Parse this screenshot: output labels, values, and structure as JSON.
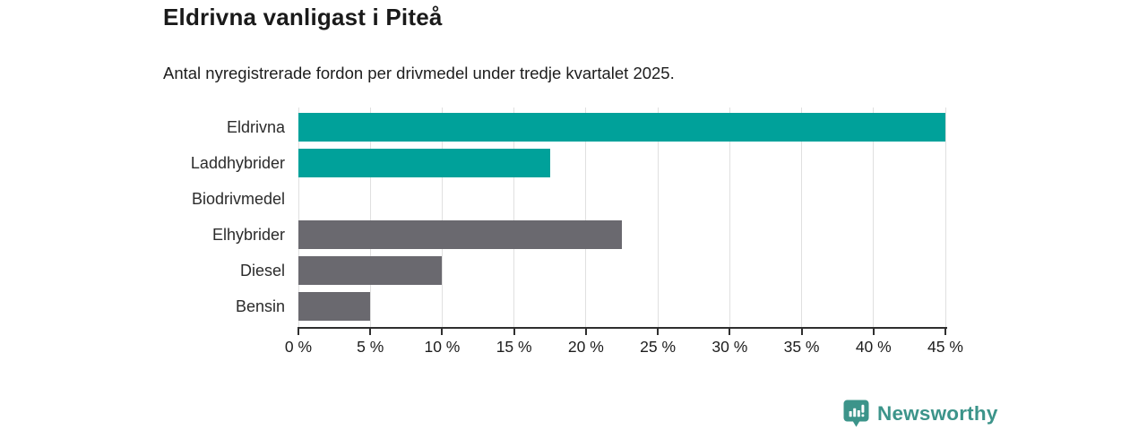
{
  "header": {
    "title": "Eldrivna vanligast i Piteå",
    "subtitle": "Antal nyregistrerade fordon per drivmedel under tredje kvartalet 2025."
  },
  "chart_data": {
    "type": "bar",
    "orientation": "horizontal",
    "title": "Eldrivna vanligast i Piteå",
    "categories": [
      "Eldrivna",
      "Laddhybrider",
      "Biodrivmedel",
      "Elhybrider",
      "Diesel",
      "Bensin"
    ],
    "values": [
      45,
      17.5,
      0,
      22.5,
      10,
      5
    ],
    "value_unit": "%",
    "series_colors": [
      "#00a19a",
      "#00a19a",
      "#00a19a",
      "#6a696f",
      "#6a696f",
      "#6a696f"
    ],
    "xlim": [
      0,
      45
    ],
    "xticks": [
      0,
      5,
      10,
      15,
      20,
      25,
      30,
      35,
      40,
      45
    ],
    "xtick_labels": [
      "0 %",
      "5 %",
      "10 %",
      "15 %",
      "20 %",
      "25 %",
      "30 %",
      "35 %",
      "40 %",
      "45 %"
    ],
    "grid": true,
    "legend": false,
    "xlabel": "",
    "ylabel": ""
  },
  "footer": {
    "brand": "Newsworthy",
    "brand_color": "#3c948a",
    "logo_icon": "bar-chart-speech-bubble-icon"
  },
  "colors": {
    "bar_teal": "#00a19a",
    "bar_gray": "#6a696f",
    "gridline": "#e0e0e0",
    "axis": "#2f2f2f",
    "text": "#1d1d1d"
  }
}
